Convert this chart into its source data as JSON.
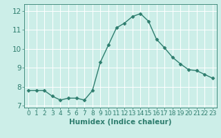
{
  "x": [
    0,
    1,
    2,
    3,
    4,
    5,
    6,
    7,
    8,
    9,
    10,
    11,
    12,
    13,
    14,
    15,
    16,
    17,
    18,
    19,
    20,
    21,
    22,
    23
  ],
  "y": [
    7.8,
    7.8,
    7.8,
    7.5,
    7.3,
    7.4,
    7.4,
    7.3,
    7.8,
    9.3,
    10.2,
    11.1,
    11.35,
    11.7,
    11.85,
    11.45,
    10.5,
    10.05,
    9.55,
    9.2,
    8.9,
    8.85,
    8.65,
    8.45
  ],
  "line_color": "#2e7d6e",
  "marker": "D",
  "markersize": 2.5,
  "linewidth": 1.0,
  "xlabel": "Humidex (Indice chaleur)",
  "xlim": [
    -0.5,
    23.5
  ],
  "ylim": [
    6.9,
    12.35
  ],
  "yticks": [
    7,
    8,
    9,
    10,
    11,
    12
  ],
  "xticks": [
    0,
    1,
    2,
    3,
    4,
    5,
    6,
    7,
    8,
    9,
    10,
    11,
    12,
    13,
    14,
    15,
    16,
    17,
    18,
    19,
    20,
    21,
    22,
    23
  ],
  "bg_color": "#cceee8",
  "grid_color": "#ffffff",
  "tick_color": "#2e7d6e",
  "label_color": "#2e7d6e",
  "xlabel_fontsize": 7.5,
  "tick_fontsize": 6.5,
  "ytick_fontsize": 7.5
}
